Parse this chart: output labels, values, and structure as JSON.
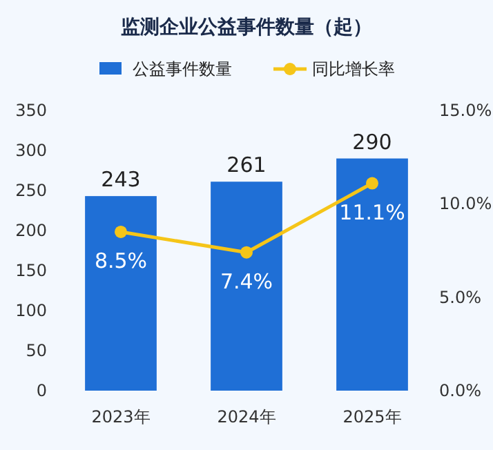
{
  "chart_data": {
    "type": "bar",
    "title": "监测企业公益事件数量（起）",
    "categories": [
      "2023年",
      "2024年",
      "2025年"
    ],
    "series": [
      {
        "name": "公益事件数量",
        "color": "#1f6fd6",
        "values": [
          243,
          261,
          290
        ],
        "value_labels": [
          "243",
          "261",
          "290"
        ]
      },
      {
        "name": "同比增长率",
        "type": "line",
        "axis": "y2",
        "color": "#f5c518",
        "values": [
          8.5,
          7.4,
          11.1
        ],
        "value_labels": [
          "8.5%",
          "7.4%",
          "11.1%"
        ]
      }
    ],
    "ylim": [
      0,
      350
    ],
    "yticks": [
      0,
      50,
      100,
      150,
      200,
      250,
      300,
      350
    ],
    "y2lim": [
      0,
      15
    ],
    "y2ticks": [
      {
        "value": 0,
        "label": "0.0%"
      },
      {
        "value": 5,
        "label": "5.0%"
      },
      {
        "value": 10,
        "label": "10.0%"
      },
      {
        "value": 15,
        "label": "15.0%"
      }
    ],
    "marker": "circle",
    "legend": "top",
    "grid": false
  }
}
